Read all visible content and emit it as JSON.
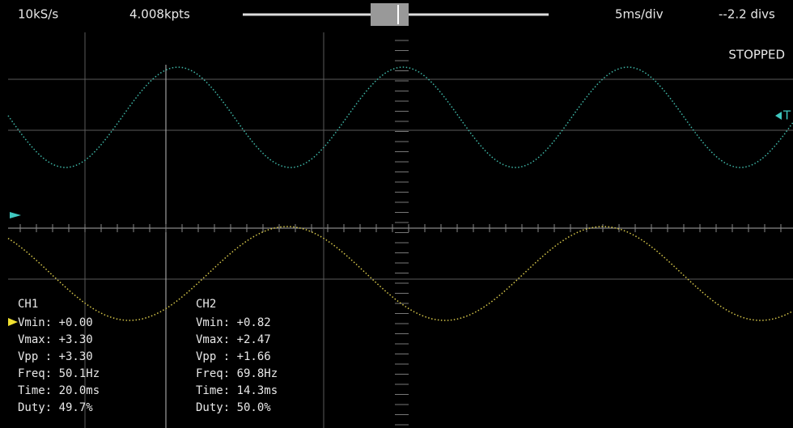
{
  "header": {
    "sample_rate": "10kS/s",
    "points": "4.008kpts",
    "timebase": "5ms/div",
    "offset": "--2.2 divs"
  },
  "status": "STOPPED",
  "trigger_label": "T",
  "channels": [
    {
      "name": "CH1",
      "rows": [
        "Vmin: +0.00",
        "Vmax: +3.30",
        "Vpp : +3.30",
        "Freq: 50.1Hz",
        "Time: 20.0ms",
        "Duty: 49.7%"
      ]
    },
    {
      "name": "CH2",
      "rows": [
        "Vmin: +0.82",
        "Vmax: +2.47",
        "Vpp : +1.66",
        "Freq: 69.8Hz",
        "Time: 14.3ms",
        "Duty: 50.0%"
      ]
    }
  ]
}
